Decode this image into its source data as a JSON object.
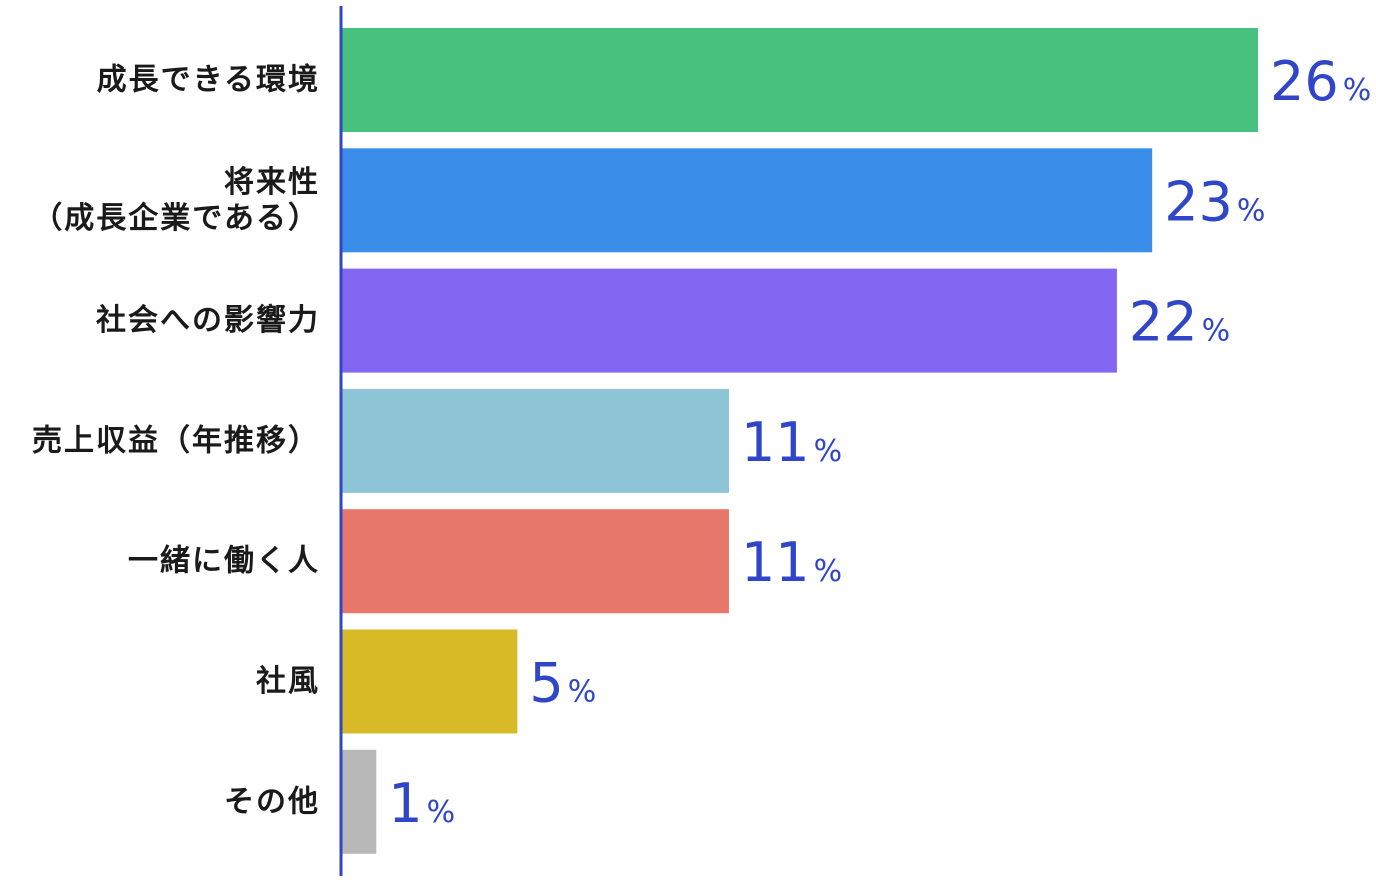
{
  "chart_data": {
    "type": "bar",
    "orientation": "horizontal",
    "categories": [
      [
        "成長できる環境"
      ],
      [
        "将来性",
        "（成長企業である）"
      ],
      [
        "社会への影響力"
      ],
      [
        "売上収益（年推移）"
      ],
      [
        "一緒に働く人"
      ],
      [
        "社風"
      ],
      [
        "その他"
      ]
    ],
    "values": [
      26,
      23,
      22,
      11,
      11,
      5,
      1
    ],
    "value_unit": "%",
    "colors": [
      "#48c07e",
      "#3a8de8",
      "#8366f2",
      "#8ec5d6",
      "#e8776c",
      "#d8ba26",
      "#b8b8b8"
    ],
    "axis_color": "#3046c8",
    "label_color": "#3046c8",
    "xlim": [
      0,
      26
    ]
  }
}
